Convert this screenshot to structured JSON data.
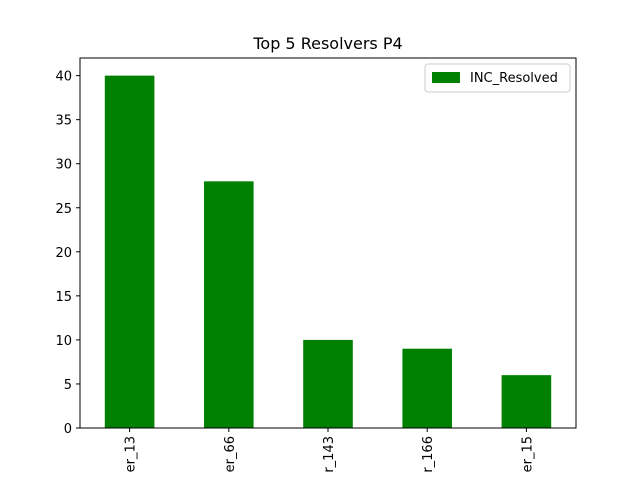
{
  "chart_data": {
    "type": "bar",
    "title": "Top 5 Resolvers P4",
    "xlabel": "",
    "ylabel": "",
    "categories": [
      "er_13",
      "er_66",
      "r_143",
      "r_166",
      "er_15"
    ],
    "series": [
      {
        "name": "INC_Resolved",
        "values": [
          40,
          28,
          10,
          9,
          6
        ],
        "color": "#008000"
      }
    ],
    "ylim": [
      0,
      42
    ],
    "yticks": [
      0,
      5,
      10,
      15,
      20,
      25,
      30,
      35,
      40
    ],
    "grid": false,
    "legend_position": "top-right",
    "x_tick_rotation": "vertical"
  }
}
